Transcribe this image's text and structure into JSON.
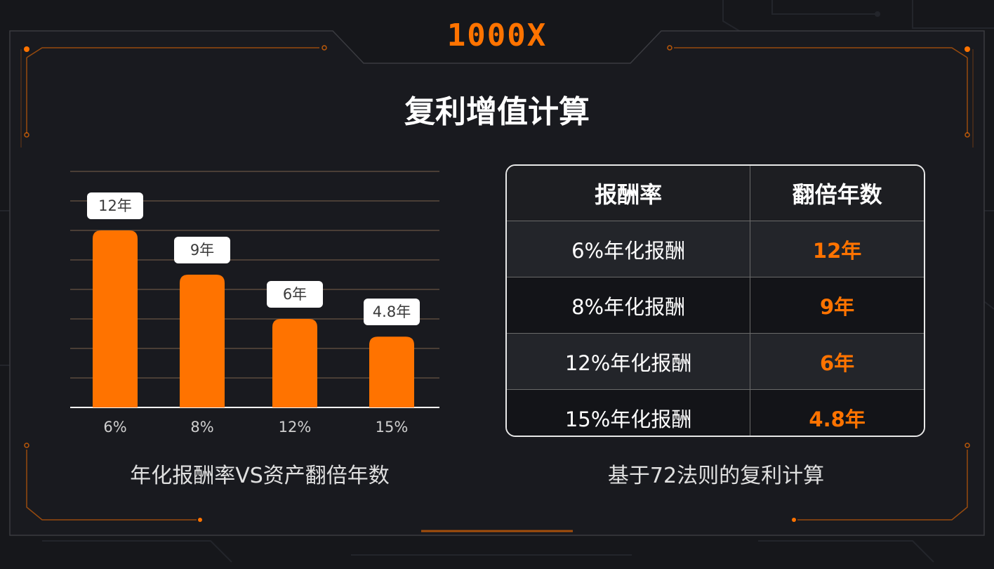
{
  "logo": "1000X",
  "title": "复利增值计算",
  "left_caption": "年化报酬率VS资产翻倍年数",
  "right_caption": "基于72法则的复利计算",
  "colors": {
    "accent": "#ff7300",
    "background": "#16171b",
    "label_bg": "#ffffff"
  },
  "chart_data": {
    "type": "bar",
    "categories": [
      "6%",
      "8%",
      "12%",
      "15%"
    ],
    "values": [
      12,
      9,
      6,
      4.8
    ],
    "data_labels": [
      "12年",
      "9年",
      "6年",
      "4.8年"
    ],
    "ylim": [
      0,
      16
    ],
    "grid": true
  },
  "table": {
    "headers": [
      "报酬率",
      "翻倍年数"
    ],
    "rows": [
      {
        "rate": "6%年化报酬",
        "years": "12年"
      },
      {
        "rate": "8%年化报酬",
        "years": "9年"
      },
      {
        "rate": "12%年化报酬",
        "years": "6年"
      },
      {
        "rate": "15%年化报酬",
        "years": "4.8年"
      }
    ]
  }
}
